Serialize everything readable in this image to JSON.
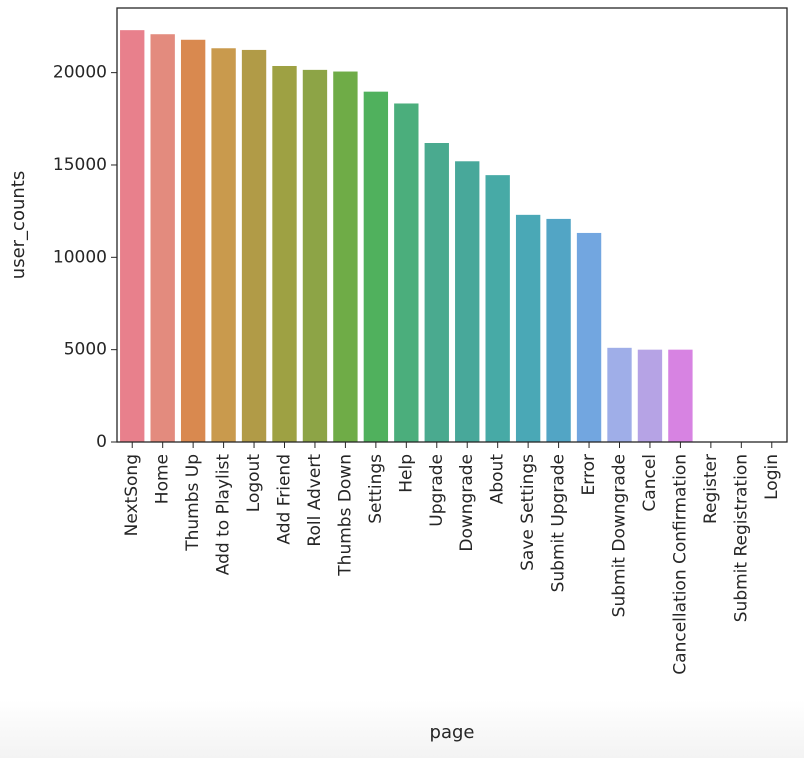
{
  "chart_data": {
    "type": "bar",
    "xlabel": "page",
    "ylabel": "user_counts",
    "ylim": [
      0,
      23500
    ],
    "yticks": [
      0,
      5000,
      10000,
      15000,
      20000
    ],
    "ytick_labels": [
      "0",
      "5000",
      "10000",
      "15000",
      "20000"
    ],
    "grid": false,
    "categories": [
      "NextSong",
      "Home",
      "Thumbs Up",
      "Add to Playlist",
      "Logout",
      "Add Friend",
      "Roll Advert",
      "Thumbs Down",
      "Settings",
      "Help",
      "Upgrade",
      "Downgrade",
      "About",
      "Save Settings",
      "Submit Upgrade",
      "Error",
      "Submit Downgrade",
      "Cancel",
      "Cancellation Confirmation",
      "Register",
      "Submit Registration",
      "Login"
    ],
    "values": [
      22300,
      22080,
      21780,
      21320,
      21230,
      20360,
      20150,
      20060,
      18970,
      18330,
      16190,
      15200,
      14450,
      12300,
      12080,
      11320,
      5100,
      5000,
      5000,
      0,
      0,
      0
    ],
    "colors": [
      "#e8808c",
      "#e38b7e",
      "#d9894f",
      "#c99a4d",
      "#b19b47",
      "#9ea143",
      "#8da446",
      "#6fac47",
      "#50b15d",
      "#4bae7c",
      "#4aaa8f",
      "#48a89a",
      "#47aaa6",
      "#4aa8b6",
      "#52a5c5",
      "#72a6e0",
      "#9faee8",
      "#b6a3e5",
      "#d783e2",
      "#e081c3",
      "#e685ad",
      "#e88a98"
    ]
  }
}
